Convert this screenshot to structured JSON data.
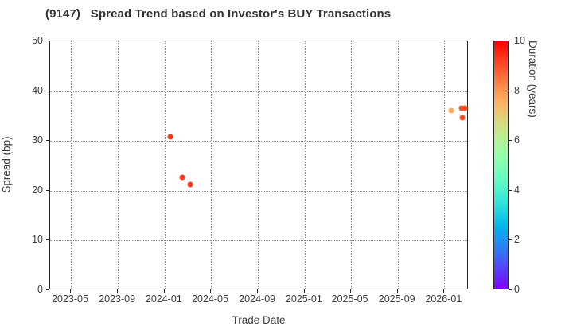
{
  "chart_data": {
    "type": "scatter",
    "title": "(9147)   Spread Trend based on Investor's BUY Transactions",
    "xlabel": "Trade Date",
    "ylabel": "Spread (bp)",
    "ylim": [
      0,
      50
    ],
    "yticks": [
      0,
      10,
      20,
      30,
      40,
      50
    ],
    "xticks": [
      {
        "label": "2023-05",
        "date": "2023-05-01"
      },
      {
        "label": "2023-09",
        "date": "2023-09-01"
      },
      {
        "label": "2024-01",
        "date": "2024-01-01"
      },
      {
        "label": "2024-05",
        "date": "2024-05-01"
      },
      {
        "label": "2024-09",
        "date": "2024-09-01"
      },
      {
        "label": "2025-01",
        "date": "2025-01-01"
      },
      {
        "label": "2025-05",
        "date": "2025-05-01"
      },
      {
        "label": "2025-09",
        "date": "2025-09-01"
      },
      {
        "label": "2026-01",
        "date": "2026-01-01"
      }
    ],
    "xlim_dates": [
      "2023-03-08",
      "2026-03-06"
    ],
    "grid": "dotted",
    "legend_position": "none",
    "colorbar": {
      "label": "Duration (years)",
      "min": 0,
      "max": 10,
      "ticks": [
        0,
        2,
        4,
        6,
        8,
        10
      ],
      "colormap": "rainbow",
      "color_min": "#8000ff",
      "color_mid": "#80ffb4",
      "color_max": "#ff0000"
    },
    "points": [
      {
        "date": "2024-01-18",
        "spread": 30.7,
        "duration": 9.3
      },
      {
        "date": "2024-02-19",
        "spread": 22.5,
        "duration": 9.3
      },
      {
        "date": "2024-03-11",
        "spread": 21.1,
        "duration": 9.3
      },
      {
        "date": "2026-01-22",
        "spread": 35.9,
        "duration": 7.7
      },
      {
        "date": "2026-02-18",
        "spread": 36.4,
        "duration": 9.0
      },
      {
        "date": "2026-02-26",
        "spread": 36.4,
        "duration": 9.0
      },
      {
        "date": "2026-02-19",
        "spread": 34.5,
        "duration": 9.0
      }
    ]
  }
}
